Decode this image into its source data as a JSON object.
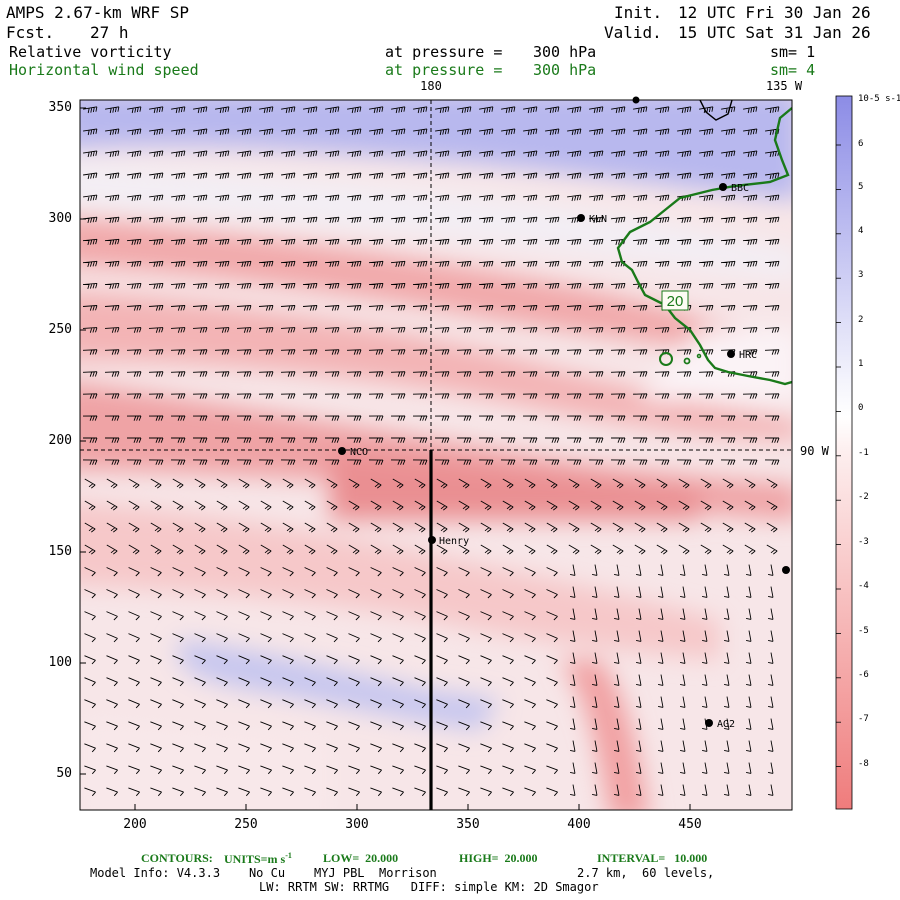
{
  "header": {
    "model": "AMPS 2.67-km WRF SP",
    "fcst_label": "Fcst.",
    "fcst_value": "27 h",
    "init_label": "Init.",
    "init_value": "12 UTC Fri 30 Jan 26",
    "valid_label": "Valid.",
    "valid_value": "15 UTC Sat 31 Jan 26"
  },
  "fields": [
    {
      "name": "Relative vorticity",
      "pressure_text": "at pressure =",
      "pressure_value": "300 hPa",
      "sm": "sm= 1"
    },
    {
      "name": "Horizontal wind speed",
      "pressure_text": "at pressure =",
      "pressure_value": "300 hPa",
      "sm": "sm= 4"
    }
  ],
  "map": {
    "meridian_labels": [
      "180",
      "135 W",
      "90 W"
    ],
    "y_ticks": [
      "350",
      "300",
      "250",
      "200",
      "150",
      "100",
      "50"
    ],
    "x_ticks": [
      "200",
      "250",
      "300",
      "350",
      "400",
      "450"
    ],
    "stations": [
      "BBC",
      "KLN",
      "HRC",
      "NCO",
      "Henry",
      "AG2"
    ],
    "contour_label": "20"
  },
  "colorbar": {
    "units": "10-5 s-1",
    "ticks": [
      "6",
      "5",
      "4",
      "3",
      "2",
      "1",
      "0",
      "-1",
      "-2",
      "-3",
      "-4",
      "-5",
      "-6",
      "-7",
      "-8"
    ],
    "positive_color": "#8c8ce6",
    "negative_color": "#ef7c7c"
  },
  "footer": {
    "contours_label": "CONTOURS:",
    "units_label": "UNITS=m s",
    "units_exp": "-1",
    "low": "LOW=  20.000",
    "high": "HIGH=  20.000",
    "interval": "INTERVAL=   10.000",
    "model_info": "Model Info: V4.3.3    No Cu    MYJ PBL  Morrison",
    "grid_info": "2.7 km,  60 levels,",
    "physics": "LW: RRTM SW: RRTMG   DIFF: simple KM: 2D Smagor"
  }
}
